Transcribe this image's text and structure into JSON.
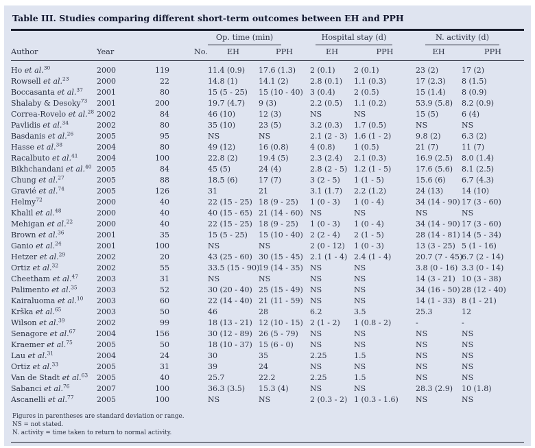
{
  "page": {
    "background": "#ffffff",
    "panel_background": "#dfe4f0",
    "text_color": "#2b3142",
    "rule_color": "#1a1e2c"
  },
  "table": {
    "title": "Table III. Studies comparing different short-term outcomes between EH and PPH",
    "group_headers": [
      {
        "label": "Op. time (min)"
      },
      {
        "label": "Hospital stay (d)"
      },
      {
        "label": "N. activity (d)"
      }
    ],
    "columns": [
      "Author",
      "Year",
      "No.",
      "EH",
      "PPH",
      "EH",
      "PPH",
      "EH",
      "PPH"
    ],
    "rows": [
      [
        "Ho",
        "et al.",
        "30",
        "2000",
        "119",
        "11.4 (0.9)",
        "17.6 (1.3)",
        "2 (0.1)",
        "2 (0.1)",
        "23 (2)",
        "17 (2)"
      ],
      [
        "Rowsell",
        "et al.",
        "23",
        "2000",
        "22",
        "14.8 (1)",
        "14.1 (2)",
        "2.8 (0.1)",
        "1.1 (0.3)",
        "17 (2.3)",
        "8 (1.5)"
      ],
      [
        "Boccasanta",
        "et al.",
        "37",
        "2001",
        "80",
        "15 (5 - 25)",
        "15 (10 - 40)",
        "3 (0.4)",
        "2 (0.5)",
        "15 (1.4)",
        "8 (0.9)"
      ],
      [
        "Shalaby & Desoky",
        "",
        "73",
        "2001",
        "200",
        "19.7 (4.7)",
        "9 (3)",
        "2.2 (0.5)",
        "1.1 (0.2)",
        "53.9 (5.8)",
        "8.2 (0.9)"
      ],
      [
        "Correa-Rovelo",
        "et al.",
        "28",
        "2002",
        "84",
        "46 (10)",
        "12 (3)",
        "NS",
        "NS",
        "15 (5)",
        "6 (4)"
      ],
      [
        "Pavlidis",
        "et al.",
        "34",
        "2002",
        "80",
        "35 (10)",
        "23 (5)",
        "3.2 (0.3)",
        "1.7 (0.5)",
        "NS",
        "NS"
      ],
      [
        "Basdanis",
        "et al.",
        "26",
        "2005",
        "95",
        "NS",
        "NS",
        "2.1 (2 - 3)",
        "1.6 (1 - 2)",
        "9.8 (2)",
        "6.3 (2)"
      ],
      [
        "Hasse",
        "et al.",
        "38",
        "2004",
        "80",
        "49 (12)",
        "16 (0.8)",
        "4 (0.8)",
        "1 (0.5)",
        "21 (7)",
        "11 (7)"
      ],
      [
        "Racalbuto",
        "et al.",
        "41",
        "2004",
        "100",
        "22.8 (2)",
        "19.4 (5)",
        "2.3 (2.4)",
        "2.1 (0.3)",
        "16.9 (2.5)",
        "8.0 (1.4)"
      ],
      [
        "Bikhchandani",
        "et al.",
        "40",
        "2005",
        "84",
        "45 (5)",
        "24 (4)",
        "2.8 (2 - 5)",
        "1.2 (1 - 5)",
        "17.6 (5.6)",
        "8.1 (2.5)"
      ],
      [
        "Chung",
        "et al.",
        "27",
        "2005",
        "88",
        "18.5 (6)",
        "17 (7)",
        "3 (2 - 5)",
        "1 (1 - 5)",
        "15.6 (6)",
        "6.7 (4.3)"
      ],
      [
        "Gravié",
        "et al.",
        "74",
        "2005",
        "126",
        "31",
        "21",
        "3.1 (1.7)",
        "2.2 (1.2)",
        "24 (13)",
        "14 (10)"
      ],
      [
        "Helmy",
        "",
        "72",
        "2000",
        "40",
        "22 (15 - 25)",
        "18 (9 - 25)",
        "1 (0 - 3)",
        "1 (0 - 4)",
        "34 (14 - 90)",
        "17 (3 - 60)"
      ],
      [
        "Khalil",
        "et al.",
        "48",
        "2000",
        "40",
        "40 (15 - 65)",
        "21 (14 - 60)",
        "NS",
        "NS",
        "NS",
        "NS"
      ],
      [
        "Mehigan",
        "et al.",
        "22",
        "2000",
        "40",
        "22 (15 - 25)",
        "18 (9 - 25)",
        "1 (0 - 3)",
        "1 (0 - 4)",
        "34 (14 - 90)",
        "17 (3 - 60)"
      ],
      [
        "Brown",
        "et al.",
        "36",
        "2001",
        "35",
        "15 (5 - 25)",
        "15 (10 - 40)",
        "2 (2 - 4)",
        "2 (1 - 5)",
        "28 (14 - 81)",
        "14 (5 - 34)"
      ],
      [
        "Ganio",
        "et al.",
        "24",
        "2001",
        "100",
        "NS",
        "NS",
        "2 (0 - 12)",
        "1 (0 - 3)",
        "13 (3 - 25)",
        "5 (1 - 16)"
      ],
      [
        "Hetzer",
        "et al.",
        "29",
        "2002",
        "20",
        "43 (25 - 60)",
        "30 (15 - 45)",
        "2.1 (1 - 4)",
        "2.4 (1 - 4)",
        "20.7 (7 - 45)",
        "6.7 (2 - 14)"
      ],
      [
        "Ortiz",
        "et al.",
        "32",
        "2002",
        "55",
        "33.5 (15 - 90)",
        "19 (14 - 35)",
        "NS",
        "NS",
        "3.8 (0 - 16)",
        "3.3 (0 - 14)"
      ],
      [
        "Cheetham",
        "et al.",
        "47",
        "2003",
        "31",
        "NS",
        "NS",
        "NS",
        "NS",
        "14 (3 - 21)",
        "10 (3 - 38)"
      ],
      [
        "Palimento",
        "et al.",
        "35",
        "2003",
        "52",
        "30 (20 - 40)",
        "25 (15 - 49)",
        "NS",
        "NS",
        "34 (16 - 50)",
        "28 (12 - 40)"
      ],
      [
        "Kairaluoma",
        "et al.",
        "10",
        "2003",
        "60",
        "22 (14 - 40)",
        "21 (11 - 59)",
        "NS",
        "NS",
        "14 (1 - 33)",
        "8 (1 - 21)"
      ],
      [
        "Krška",
        "et al.",
        "65",
        "2003",
        "50",
        "46",
        "28",
        "6.2",
        "3.5",
        "25.3",
        "12"
      ],
      [
        "Wilson",
        "et al.",
        "39",
        "2002",
        "99",
        "18 (13 - 21)",
        "12 (10 - 15)",
        "2 (1 - 2)",
        "1 (0.8 - 2)",
        "-",
        "-"
      ],
      [
        "Senagore",
        "et al.",
        "67",
        "2004",
        "156",
        "30 (12 - 89)",
        "26 (5 - 79)",
        "NS",
        "NS",
        "NS",
        "NS"
      ],
      [
        "Kraemer",
        "et al.",
        "75",
        "2005",
        "50",
        "18 (10 - 37)",
        "15 (6 - 0)",
        "NS",
        "NS",
        "NS",
        "NS"
      ],
      [
        "Lau",
        "et al.",
        "31",
        "2004",
        "24",
        "30",
        "35",
        "2.25",
        "1.5",
        "NS",
        "NS"
      ],
      [
        "Ortiz",
        "et al.",
        "33",
        "2005",
        "31",
        "39",
        "24",
        "NS",
        "NS",
        "NS",
        "NS"
      ],
      [
        "Van de Stadt",
        "et al.",
        "63",
        "2005",
        "40",
        "25.7",
        "22.2",
        "2.25",
        "1.5",
        "NS",
        "NS"
      ],
      [
        "Sabanci",
        "et al.",
        "76",
        "2007",
        "100",
        "36.3 (3.5)",
        "15.3 (4)",
        "NS",
        "NS",
        "28.3 (2.9)",
        "10 (1.8)"
      ],
      [
        "Ascanelli",
        "et al.",
        "77",
        "2005",
        "100",
        "NS",
        "NS",
        "2 (0.3 - 2)",
        "1 (0.3 - 1.6)",
        "NS",
        "NS"
      ]
    ],
    "footnotes": [
      "Figures in parentheses are standard deviation or range.",
      "NS = not stated.",
      "N. activity = time taken to return to normal activity."
    ]
  }
}
